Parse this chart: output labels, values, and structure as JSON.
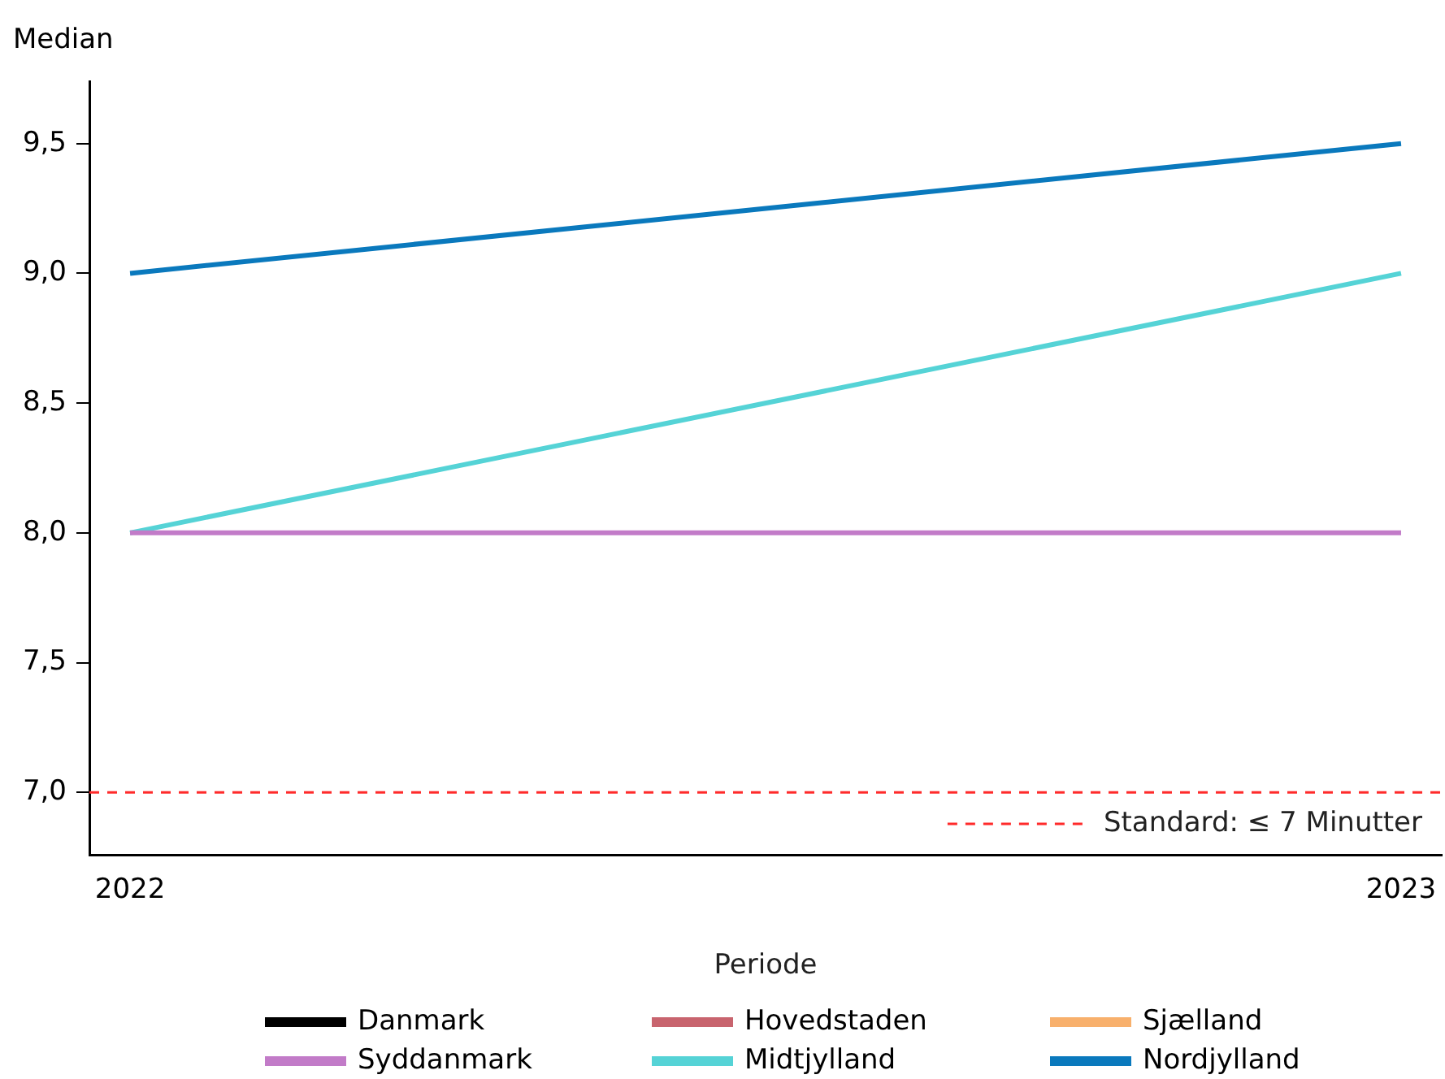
{
  "chart_data": {
    "type": "line",
    "ylabel": "Median",
    "xlabel": "Periode",
    "x": [
      2022,
      2023
    ],
    "xlim": [
      2021.968,
      2023.032
    ],
    "xticks": [
      2022,
      2023
    ],
    "ylim": [
      6.76,
      9.74
    ],
    "yticks": [
      {
        "value": 7,
        "label": "7,0"
      },
      {
        "value": 7.5,
        "label": "7,5"
      },
      {
        "value": 8,
        "label": "8,0"
      },
      {
        "value": 8.5,
        "label": "8,5"
      },
      {
        "value": 9,
        "label": "9,0"
      },
      {
        "value": 9.5,
        "label": "9,5"
      }
    ],
    "series": [
      {
        "name": "Danmark",
        "color": "#000000",
        "values": [
          null,
          null
        ]
      },
      {
        "name": "Hovedstaden",
        "color": "#c8646e",
        "values": [
          null,
          null
        ]
      },
      {
        "name": "Sjælland",
        "color": "#f8b06c",
        "values": [
          null,
          null
        ]
      },
      {
        "name": "Syddanmark",
        "color": "#c27bc8",
        "values": [
          8,
          8
        ]
      },
      {
        "name": "Midtjylland",
        "color": "#55d3d6",
        "values": [
          8,
          9
        ]
      },
      {
        "name": "Nordjylland",
        "color": "#0a79bd",
        "values": [
          9,
          9.5
        ]
      }
    ],
    "ref_lines": [
      {
        "axis": "y",
        "value": 7,
        "label": "Standard: ≤ 7 Minutter",
        "color": "#ff2b2b",
        "line_style": "dashed"
      }
    ],
    "grid": false,
    "legend": "bottom",
    "marker": "none",
    "line_style": "solid"
  }
}
